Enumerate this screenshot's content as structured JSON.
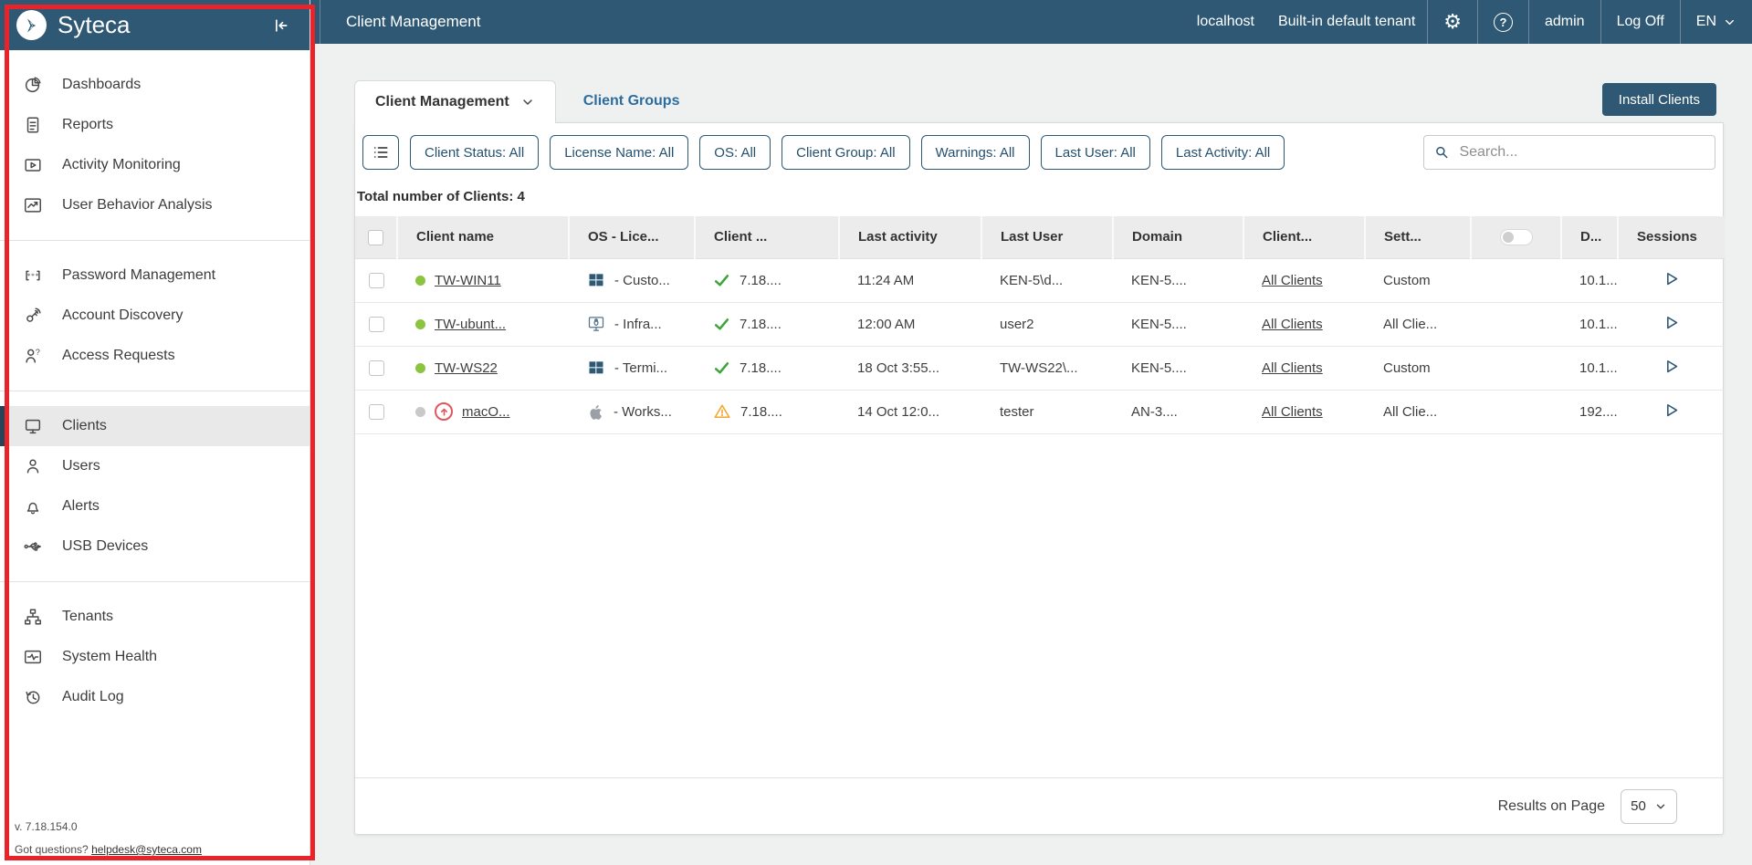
{
  "colors": {
    "brand": "#2e5873",
    "annotation": "#e9232a",
    "online": "#8bc53f",
    "offline": "#c9c9c9",
    "ok": "#3da639",
    "warn": "#f3a72e",
    "danger": "#e0575d",
    "link": "#2c6da0"
  },
  "topbar": {
    "title": "Client Management",
    "host": "localhost",
    "tenant": "Built-in default tenant",
    "user": "admin",
    "logoff": "Log Off",
    "lang": "EN"
  },
  "sidebar": {
    "brand": "Syteca",
    "version": "v. 7.18.154.0",
    "questions_label": "Got questions?",
    "helpdesk": "helpdesk@syteca.com",
    "groups": [
      [
        {
          "label": "Dashboards",
          "icon": "pie-chart"
        },
        {
          "label": "Reports",
          "icon": "report-doc"
        },
        {
          "label": "Activity Monitoring",
          "icon": "monitor-play"
        },
        {
          "label": "User Behavior Analysis",
          "icon": "chart-line"
        }
      ],
      [
        {
          "label": "Password Management",
          "icon": "password-brackets"
        },
        {
          "label": "Account Discovery",
          "icon": "key-signal"
        },
        {
          "label": "Access Requests",
          "icon": "user-question"
        }
      ],
      [
        {
          "label": "Clients",
          "icon": "monitor",
          "selected": true
        },
        {
          "label": "Users",
          "icon": "user"
        },
        {
          "label": "Alerts",
          "icon": "bell"
        },
        {
          "label": "USB Devices",
          "icon": "usb"
        }
      ],
      [
        {
          "label": "Tenants",
          "icon": "org-tree"
        },
        {
          "label": "System Health",
          "icon": "health-monitor"
        },
        {
          "label": "Audit Log",
          "icon": "history-clock"
        }
      ]
    ]
  },
  "tabs": {
    "active": "Client Management",
    "secondary": "Client Groups"
  },
  "actions": {
    "install": "Install Clients"
  },
  "filters": [
    "Client Status: All",
    "License Name: All",
    "OS: All",
    "Client Group: All",
    "Warnings: All",
    "Last User: All",
    "Last Activity: All"
  ],
  "search": {
    "placeholder": "Search..."
  },
  "summary": "Total number of Clients: 4",
  "table": {
    "columns": [
      {
        "label": "",
        "type": "checkbox"
      },
      {
        "label": "Client name"
      },
      {
        "label": "OS - Lice..."
      },
      {
        "label": "Client ..."
      },
      {
        "label": "Last activity"
      },
      {
        "label": "Last User"
      },
      {
        "label": "Domain"
      },
      {
        "label": "Client..."
      },
      {
        "label": "Sett..."
      },
      {
        "label": "",
        "type": "toggle"
      },
      {
        "label": "D..."
      },
      {
        "label": "Sessions"
      }
    ],
    "rows": [
      {
        "status": "online",
        "update": false,
        "name": "TW-WIN11",
        "os": "windows",
        "os_text": "- Custo...",
        "version_status": "ok",
        "version": "7.18....",
        "last_activity": "11:24 AM",
        "last_user": "KEN-5\\d...",
        "domain": "KEN-5....",
        "group": "All Clients",
        "settings": "Custom",
        "d": "10.1..."
      },
      {
        "status": "online",
        "update": false,
        "name": "TW-ubunt...",
        "os": "linux",
        "os_text": "- Infra...",
        "version_status": "ok",
        "version": "7.18....",
        "last_activity": "12:00 AM",
        "last_user": "user2",
        "domain": "KEN-5....",
        "group": "All Clients",
        "settings": "All Clie...",
        "d": "10.1..."
      },
      {
        "status": "online",
        "update": false,
        "name": "TW-WS22",
        "os": "windows",
        "os_text": "- Termi...",
        "version_status": "ok",
        "version": "7.18....",
        "last_activity": "18 Oct 3:55...",
        "last_user": "TW-WS22\\...",
        "domain": "KEN-5....",
        "group": "All Clients",
        "settings": "Custom",
        "d": "10.1..."
      },
      {
        "status": "offline",
        "update": true,
        "name": "macO...",
        "os": "mac",
        "os_text": "- Works...",
        "version_status": "warn",
        "version": "7.18....",
        "last_activity": "14 Oct 12:0...",
        "last_user": "tester",
        "domain": "AN-3....",
        "group": "All Clients",
        "settings": "All Clie...",
        "d": "192...."
      }
    ]
  },
  "pagination": {
    "label": "Results on Page",
    "value": "50"
  }
}
